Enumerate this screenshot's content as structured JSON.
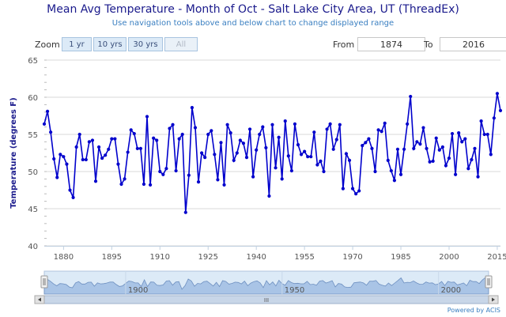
{
  "header": {
    "title": "Mean Avg Temperature - Month of Oct - Salt Lake City Area, UT (ThreadEx)",
    "subtitle": "Use navigation tools above and below chart to change displayed range"
  },
  "zoom": {
    "label": "Zoom",
    "buttons": [
      "1 yr",
      "10 yrs",
      "30 yrs",
      "All"
    ]
  },
  "range": {
    "from_label": "From",
    "from_value": "1874",
    "to_label": "To",
    "to_value": "2016"
  },
  "navigator": {
    "tick_labels": [
      "1900",
      "1950",
      "2000"
    ],
    "scroll_grip": "III"
  },
  "credits": "Powered by ACIS",
  "colors": {
    "line": "#0000cc",
    "title": "#1a1a8c",
    "subtitle": "#3a7fc1",
    "navigator_fill": "#a9c4e6"
  },
  "chart_data": {
    "type": "line",
    "title": "Mean Avg Temperature - Month of Oct - Salt Lake City Area, UT (ThreadEx)",
    "subtitle": "Use navigation tools above and below chart to change displayed range",
    "ylabel": "Temperature (degrees F)",
    "xlabel": "",
    "xlim": [
      1874,
      2016
    ],
    "ylim": [
      40,
      65
    ],
    "xticks": [
      1880,
      1895,
      1910,
      1925,
      1940,
      1955,
      1970,
      1985,
      2000,
      2015
    ],
    "yticks": [
      40,
      45,
      50,
      55,
      60,
      65
    ],
    "grid": "horizontal",
    "series": [
      {
        "x": [
          1874,
          1875,
          1876,
          1877,
          1878,
          1879,
          1880,
          1881,
          1882,
          1883,
          1884,
          1885,
          1886,
          1887,
          1888,
          1889,
          1890,
          1891,
          1892,
          1893,
          1894,
          1895,
          1896,
          1897,
          1898,
          1899,
          1900,
          1901,
          1902,
          1903,
          1904,
          1905,
          1906,
          1907,
          1908,
          1909,
          1910,
          1911,
          1912,
          1913,
          1914,
          1915,
          1916,
          1917,
          1918,
          1919,
          1920,
          1921,
          1922,
          1923,
          1924,
          1925,
          1926,
          1927,
          1928,
          1929,
          1930,
          1931,
          1932,
          1933,
          1934,
          1935,
          1936,
          1937,
          1938,
          1939,
          1940,
          1941,
          1942,
          1943,
          1944,
          1945,
          1946,
          1947,
          1948,
          1949,
          1950,
          1951,
          1952,
          1953,
          1954,
          1955,
          1956,
          1957,
          1958,
          1959,
          1960,
          1961,
          1962,
          1963,
          1964,
          1965,
          1966,
          1967,
          1968,
          1969,
          1970,
          1971,
          1972,
          1973,
          1974,
          1975,
          1976,
          1977,
          1978,
          1979,
          1980,
          1981,
          1982,
          1983,
          1984,
          1985,
          1986,
          1987,
          1988,
          1989,
          1990,
          1991,
          1992,
          1993,
          1994,
          1995,
          1996,
          1997,
          1998,
          1999,
          2000,
          2001,
          2002,
          2003,
          2004,
          2005,
          2006,
          2007,
          2008,
          2009,
          2010,
          2011,
          2012,
          2013,
          2014,
          2015,
          2016
        ],
        "values": [
          56.4,
          58.1,
          55.3,
          51.7,
          49.2,
          52.3,
          52.0,
          51.0,
          47.5,
          46.5,
          53.3,
          55.0,
          51.6,
          51.6,
          54.0,
          54.2,
          48.7,
          53.3,
          51.8,
          52.2,
          53.0,
          54.4,
          54.4,
          51.0,
          48.3,
          49.0,
          52.6,
          55.6,
          55.1,
          53.1,
          53.1,
          48.3,
          57.4,
          48.2,
          54.5,
          54.2,
          50.0,
          49.6,
          50.4,
          55.8,
          56.3,
          50.1,
          54.4,
          55.0,
          44.5,
          49.5,
          58.6,
          55.9,
          48.6,
          52.5,
          51.9,
          55.0,
          55.5,
          52.3,
          48.9,
          53.9,
          48.2,
          56.3,
          55.2,
          51.5,
          52.5,
          54.2,
          53.8,
          51.9,
          55.7,
          49.3,
          52.9,
          55.0,
          56.0,
          53.2,
          46.7,
          56.3,
          50.5,
          54.6,
          49.0,
          56.8,
          52.1,
          50.1,
          56.4,
          53.6,
          52.3,
          52.7,
          52.0,
          52.0,
          55.3,
          50.9,
          51.4,
          50.0,
          55.7,
          56.4,
          53.0,
          54.3,
          56.3,
          47.7,
          52.4,
          51.5,
          47.7,
          47.0,
          47.4,
          53.5,
          53.9,
          54.4,
          53.1,
          50.0,
          55.6,
          55.4,
          56.5,
          51.5,
          50.1,
          48.8,
          53.0,
          49.6,
          53.0,
          56.4,
          60.1,
          53.1,
          54.0,
          53.7,
          55.9,
          53.1,
          51.3,
          51.4,
          54.5,
          52.9,
          53.3,
          50.8,
          51.8,
          55.1,
          49.6,
          55.2,
          54.0,
          54.4,
          50.4,
          51.6,
          53.1,
          49.3,
          56.8,
          55.0,
          55.0,
          52.3,
          57.2,
          60.5,
          58.2
        ]
      }
    ]
  }
}
